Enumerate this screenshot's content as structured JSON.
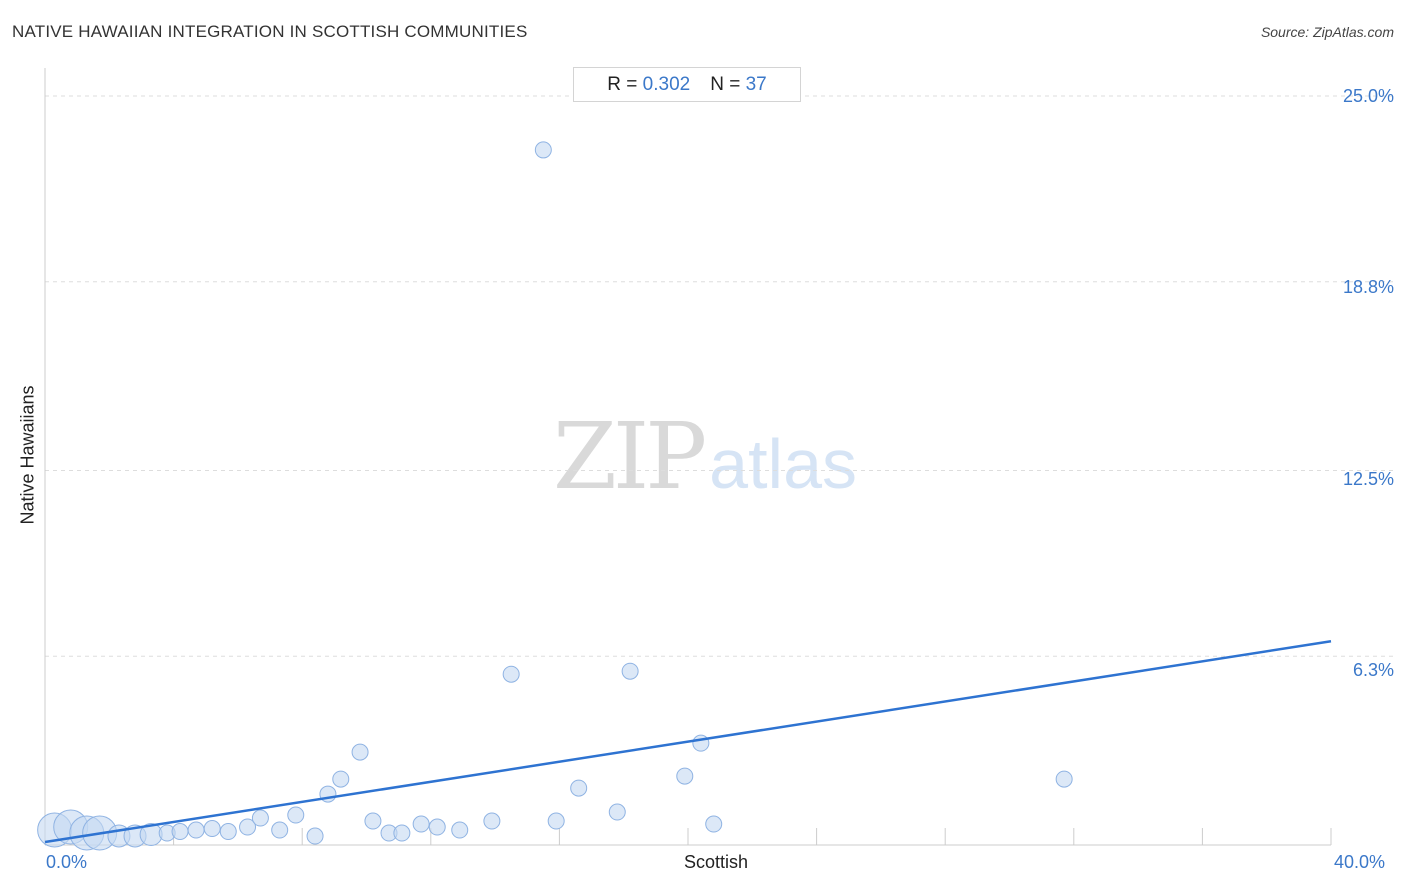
{
  "header": {
    "title": "NATIVE HAWAIIAN INTEGRATION IN SCOTTISH COMMUNITIES",
    "source": "Source: ZipAtlas.com"
  },
  "stats": {
    "r_label": "R =",
    "r_value": "0.302",
    "n_label": "N =",
    "n_value": "37"
  },
  "watermark": {
    "zip": "ZIP",
    "atlas": "atlas"
  },
  "colors": {
    "point_fill": "#c5d9f2",
    "point_stroke": "#8fb3e3",
    "trend_line": "#2e73d1",
    "tick_text": "#3b78c9",
    "grid": "#dddddd"
  },
  "chart_data": {
    "type": "scatter",
    "title": "NATIVE HAWAIIAN INTEGRATION IN SCOTTISH COMMUNITIES",
    "xlabel": "Scottish",
    "ylabel": "Native Hawaiians",
    "xlim": [
      0,
      40
    ],
    "ylim": [
      0,
      25
    ],
    "x_tick_labels": [
      "0.0%",
      "40.0%"
    ],
    "y_ticks": [
      25.0,
      18.8,
      12.5,
      6.3
    ],
    "y_tick_labels": [
      "25.0%",
      "18.8%",
      "12.5%",
      "6.3%"
    ],
    "grid": "horizontal dashed",
    "r": 0.302,
    "n": 37,
    "trend_line": {
      "x": [
        0,
        40
      ],
      "y": [
        0.1,
        6.8
      ]
    },
    "points": [
      {
        "x": 0.3,
        "y": 0.5,
        "size": "large"
      },
      {
        "x": 0.8,
        "y": 0.6,
        "size": "large"
      },
      {
        "x": 1.3,
        "y": 0.4,
        "size": "large"
      },
      {
        "x": 1.7,
        "y": 0.4,
        "size": "large"
      },
      {
        "x": 2.3,
        "y": 0.3,
        "size": "medium"
      },
      {
        "x": 2.8,
        "y": 0.3,
        "size": "medium"
      },
      {
        "x": 3.3,
        "y": 0.35,
        "size": "medium"
      },
      {
        "x": 3.8,
        "y": 0.4,
        "size": "small"
      },
      {
        "x": 4.2,
        "y": 0.45,
        "size": "small"
      },
      {
        "x": 4.7,
        "y": 0.5,
        "size": "small"
      },
      {
        "x": 5.2,
        "y": 0.55,
        "size": "small"
      },
      {
        "x": 5.7,
        "y": 0.45,
        "size": "small"
      },
      {
        "x": 6.3,
        "y": 0.6,
        "size": "small"
      },
      {
        "x": 6.7,
        "y": 0.9,
        "size": "small"
      },
      {
        "x": 7.3,
        "y": 0.5,
        "size": "small"
      },
      {
        "x": 7.8,
        "y": 1.0,
        "size": "small"
      },
      {
        "x": 8.4,
        "y": 0.3,
        "size": "small"
      },
      {
        "x": 8.8,
        "y": 1.7,
        "size": "small"
      },
      {
        "x": 9.2,
        "y": 2.2,
        "size": "small"
      },
      {
        "x": 9.8,
        "y": 3.1,
        "size": "small"
      },
      {
        "x": 10.2,
        "y": 0.8,
        "size": "small"
      },
      {
        "x": 10.7,
        "y": 0.4,
        "size": "small"
      },
      {
        "x": 11.1,
        "y": 0.4,
        "size": "small"
      },
      {
        "x": 11.7,
        "y": 0.7,
        "size": "small"
      },
      {
        "x": 12.2,
        "y": 0.6,
        "size": "small"
      },
      {
        "x": 12.9,
        "y": 0.5,
        "size": "small"
      },
      {
        "x": 13.9,
        "y": 0.8,
        "size": "small"
      },
      {
        "x": 14.5,
        "y": 5.7,
        "size": "small"
      },
      {
        "x": 15.5,
        "y": 23.2,
        "size": "small"
      },
      {
        "x": 15.9,
        "y": 0.8,
        "size": "small"
      },
      {
        "x": 16.6,
        "y": 1.9,
        "size": "small"
      },
      {
        "x": 17.8,
        "y": 1.1,
        "size": "small"
      },
      {
        "x": 18.2,
        "y": 5.8,
        "size": "small"
      },
      {
        "x": 19.9,
        "y": 2.3,
        "size": "small"
      },
      {
        "x": 20.4,
        "y": 3.4,
        "size": "small"
      },
      {
        "x": 20.8,
        "y": 0.7,
        "size": "small"
      },
      {
        "x": 31.7,
        "y": 2.2,
        "size": "small"
      }
    ]
  }
}
